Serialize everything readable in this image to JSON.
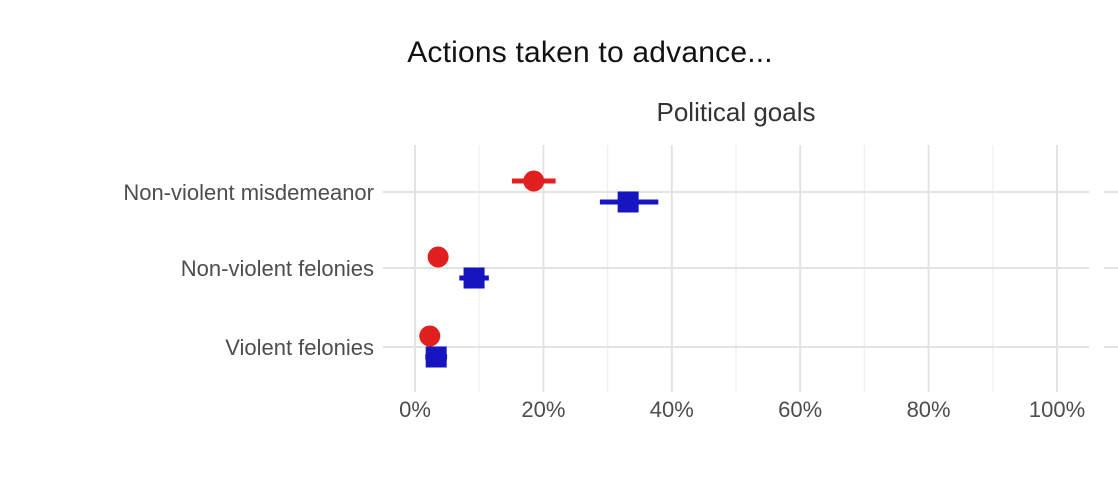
{
  "chart_data": {
    "type": "pointrange-dot-plot",
    "title": "Actions taken to advance...",
    "facet_label": "Political goals",
    "categories": [
      "Non-violent misdemeanor",
      "Non-violent felonies",
      "Violent felonies"
    ],
    "xlabel": "",
    "ylabel": "",
    "xlim": [
      0,
      100
    ],
    "x_ticks": [
      0,
      20,
      40,
      60,
      80,
      100
    ],
    "x_tick_labels": [
      "0%",
      "20%",
      "40%",
      "60%",
      "80%",
      "100%"
    ],
    "x_minor_ticks": [
      10,
      30,
      50,
      70,
      90
    ],
    "grid": "major horizontal and vertical, minor vertical, light gray on white",
    "legend": "none visible",
    "series": [
      {
        "name": "red-circle-series",
        "marker": "circle",
        "color": "#e11f1f",
        "values": [
          18.5,
          3.6,
          2.3
        ],
        "ci_low": [
          15.1,
          2.5,
          1.5
        ],
        "ci_high": [
          21.9,
          4.8,
          3.3
        ]
      },
      {
        "name": "blue-square-series",
        "marker": "square",
        "color": "#1615c0",
        "values": [
          33.2,
          9.2,
          3.3
        ],
        "ci_low": [
          28.8,
          6.9,
          1.6
        ],
        "ci_high": [
          37.9,
          11.5,
          5.0
        ]
      }
    ],
    "colors": {
      "grid_major": "#e3e3e3",
      "grid_minor": "#efefef",
      "axis_text": "#4d4d4d",
      "title_text": "#121212",
      "facet_text": "#333333",
      "background": "#ffffff"
    }
  }
}
